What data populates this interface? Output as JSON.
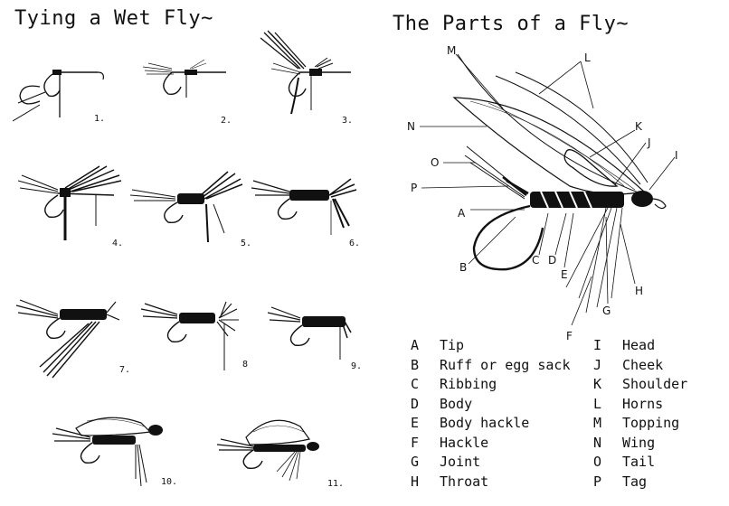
{
  "left": {
    "title": "Tying a Wet Fly~",
    "steps": [
      "1.",
      "2.",
      "3.",
      "4.",
      "5.",
      "6.",
      "7.",
      "8",
      "9.",
      "10.",
      "11."
    ]
  },
  "right": {
    "title": "The Parts of a Fly~",
    "callouts": [
      "M",
      "L",
      "N",
      "K",
      "J",
      "I",
      "O",
      "P",
      "A",
      "B",
      "C",
      "D",
      "E",
      "H",
      "G",
      "F"
    ],
    "legend_left": [
      {
        "letter": "A",
        "term": "Tip"
      },
      {
        "letter": "B",
        "term": "Ruff or egg sack"
      },
      {
        "letter": "C",
        "term": "Ribbing"
      },
      {
        "letter": "D",
        "term": "Body"
      },
      {
        "letter": "E",
        "term": "Body hackle"
      },
      {
        "letter": "F",
        "term": "Hackle"
      },
      {
        "letter": "G",
        "term": "Joint"
      },
      {
        "letter": "H",
        "term": "Throat"
      }
    ],
    "legend_right": [
      {
        "letter": "I",
        "term": "Head"
      },
      {
        "letter": "J",
        "term": "Cheek"
      },
      {
        "letter": "K",
        "term": "Shoulder"
      },
      {
        "letter": "L",
        "term": "Horns"
      },
      {
        "letter": "M",
        "term": "Topping"
      },
      {
        "letter": "N",
        "term": "Wing"
      },
      {
        "letter": "O",
        "term": "Tail"
      },
      {
        "letter": "P",
        "term": "Tag"
      }
    ]
  }
}
